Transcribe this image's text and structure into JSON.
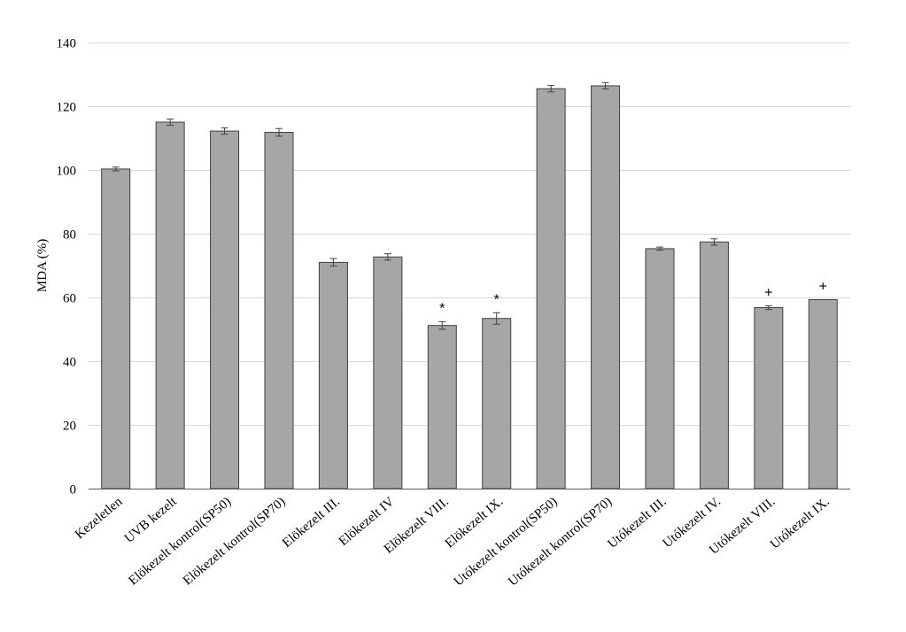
{
  "chart_data": {
    "type": "bar",
    "title": "",
    "xlabel": "",
    "ylabel": "MDA (%)",
    "ylim": [
      0,
      140
    ],
    "yticks": [
      0,
      20,
      40,
      60,
      80,
      100,
      120,
      140
    ],
    "grid": true,
    "legend": "none",
    "bar_color": "#a6a6a6",
    "categories": [
      "Kezeletlen",
      "UVB kezelt",
      "Elökezelt kontrol(SP50)",
      "Elökezelt kontrol(SP70)",
      "Elökezelt III.",
      "Elökezelt IV",
      "Elökezelt VIII.",
      "Elökezelt IX.",
      "Utókezelt kontrol(SP50)",
      "Utókezelt kontrol(SP70)",
      "Utókezelt III.",
      "Utókezelt IV.",
      "Utókezelt VIII.",
      "Utókezelt IX."
    ],
    "values": [
      100.3,
      115.0,
      112.2,
      111.8,
      71.0,
      72.7,
      51.2,
      53.4,
      125.5,
      126.4,
      75.3,
      77.4,
      56.8,
      59.3
    ],
    "errors": [
      0.6,
      1.0,
      1.0,
      1.2,
      1.2,
      1.0,
      1.2,
      1.8,
      1.0,
      1.0,
      0.5,
      1.0,
      0.6,
      0.0
    ],
    "annotations": [
      "",
      "",
      "",
      "",
      "",
      "",
      "*",
      "*",
      "",
      "",
      "",
      "",
      "+",
      "+"
    ]
  }
}
